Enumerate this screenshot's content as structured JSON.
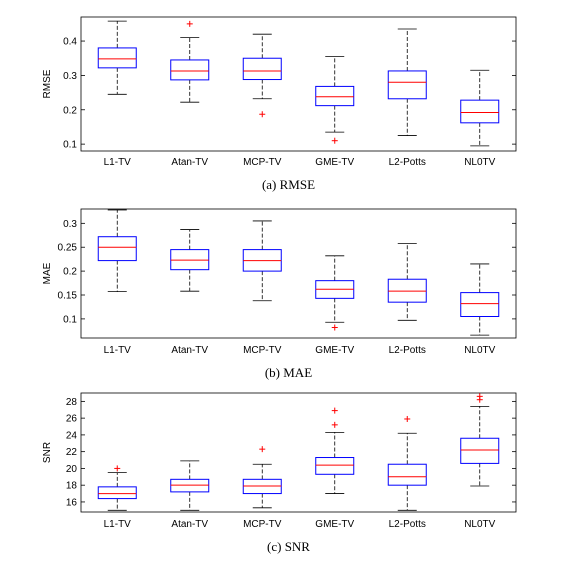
{
  "chart_data": [
    {
      "type": "box",
      "caption": "(a)  RMSE",
      "ylabel": "RMSE",
      "ylim": [
        0.08,
        0.47
      ],
      "yticks": [
        0.1,
        0.2,
        0.3,
        0.4
      ],
      "ytick_labels": [
        "0.1",
        "0.2",
        "0.3",
        "0.4"
      ],
      "categories": [
        "L1-TV",
        "Atan-TV",
        "MCP-TV",
        "GME-TV",
        "L2-Potts",
        "NL0TV"
      ],
      "boxes": [
        {
          "whisker_low": 0.245,
          "q1": 0.322,
          "median": 0.348,
          "q3": 0.38,
          "whisker_high": 0.458,
          "outliers": []
        },
        {
          "whisker_low": 0.222,
          "q1": 0.287,
          "median": 0.313,
          "q3": 0.345,
          "whisker_high": 0.41,
          "outliers": [
            0.45
          ]
        },
        {
          "whisker_low": 0.232,
          "q1": 0.288,
          "median": 0.313,
          "q3": 0.35,
          "whisker_high": 0.42,
          "outliers": [
            0.187
          ]
        },
        {
          "whisker_low": 0.135,
          "q1": 0.212,
          "median": 0.238,
          "q3": 0.268,
          "whisker_high": 0.355,
          "outliers": [
            0.11
          ]
        },
        {
          "whisker_low": 0.125,
          "q1": 0.232,
          "median": 0.28,
          "q3": 0.313,
          "whisker_high": 0.435,
          "outliers": []
        },
        {
          "whisker_low": 0.095,
          "q1": 0.162,
          "median": 0.192,
          "q3": 0.228,
          "whisker_high": 0.315,
          "outliers": []
        }
      ]
    },
    {
      "type": "box",
      "caption": "(b)  MAE",
      "ylabel": "MAE",
      "ylim": [
        0.06,
        0.33
      ],
      "yticks": [
        0.1,
        0.15,
        0.2,
        0.25,
        0.3
      ],
      "ytick_labels": [
        "0.1",
        "0.15",
        "0.2",
        "0.25",
        "0.3"
      ],
      "categories": [
        "L1-TV",
        "Atan-TV",
        "MCP-TV",
        "GME-TV",
        "L2-Potts",
        "NL0TV"
      ],
      "boxes": [
        {
          "whisker_low": 0.157,
          "q1": 0.222,
          "median": 0.25,
          "q3": 0.272,
          "whisker_high": 0.328,
          "outliers": []
        },
        {
          "whisker_low": 0.158,
          "q1": 0.203,
          "median": 0.223,
          "q3": 0.245,
          "whisker_high": 0.287,
          "outliers": []
        },
        {
          "whisker_low": 0.138,
          "q1": 0.2,
          "median": 0.222,
          "q3": 0.245,
          "whisker_high": 0.305,
          "outliers": []
        },
        {
          "whisker_low": 0.093,
          "q1": 0.143,
          "median": 0.162,
          "q3": 0.18,
          "whisker_high": 0.232,
          "outliers": [
            0.082
          ]
        },
        {
          "whisker_low": 0.097,
          "q1": 0.135,
          "median": 0.158,
          "q3": 0.183,
          "whisker_high": 0.258,
          "outliers": []
        },
        {
          "whisker_low": 0.066,
          "q1": 0.105,
          "median": 0.132,
          "q3": 0.155,
          "whisker_high": 0.215,
          "outliers": []
        }
      ]
    },
    {
      "type": "box",
      "caption": "(c)  SNR",
      "ylabel": "SNR",
      "ylim": [
        14.8,
        29
      ],
      "yticks": [
        16,
        18,
        20,
        22,
        24,
        26,
        28
      ],
      "ytick_labels": [
        "16",
        "18",
        "20",
        "22",
        "24",
        "26",
        "28"
      ],
      "categories": [
        "L1-TV",
        "Atan-TV",
        "MCP-TV",
        "GME-TV",
        "L2-Potts",
        "NL0TV"
      ],
      "boxes": [
        {
          "whisker_low": 15.0,
          "q1": 16.4,
          "median": 17.0,
          "q3": 17.8,
          "whisker_high": 19.5,
          "outliers": [
            20.0
          ]
        },
        {
          "whisker_low": 15.0,
          "q1": 17.2,
          "median": 18.0,
          "q3": 18.7,
          "whisker_high": 20.9,
          "outliers": []
        },
        {
          "whisker_low": 15.3,
          "q1": 17.0,
          "median": 17.9,
          "q3": 18.7,
          "whisker_high": 20.5,
          "outliers": [
            22.3
          ]
        },
        {
          "whisker_low": 17.0,
          "q1": 19.3,
          "median": 20.4,
          "q3": 21.3,
          "whisker_high": 24.3,
          "outliers": [
            25.2,
            26.9
          ]
        },
        {
          "whisker_low": 15.0,
          "q1": 18.0,
          "median": 19.0,
          "q3": 20.5,
          "whisker_high": 24.2,
          "outliers": [
            25.9
          ]
        },
        {
          "whisker_low": 17.9,
          "q1": 20.6,
          "median": 22.2,
          "q3": 23.6,
          "whisker_high": 27.4,
          "outliers": [
            28.2,
            28.6
          ]
        }
      ]
    }
  ],
  "colors": {
    "box": "#0000ff",
    "median": "#ff0000",
    "outlier": "#ff0000",
    "whisker": "#000000",
    "frame": "#000000"
  }
}
